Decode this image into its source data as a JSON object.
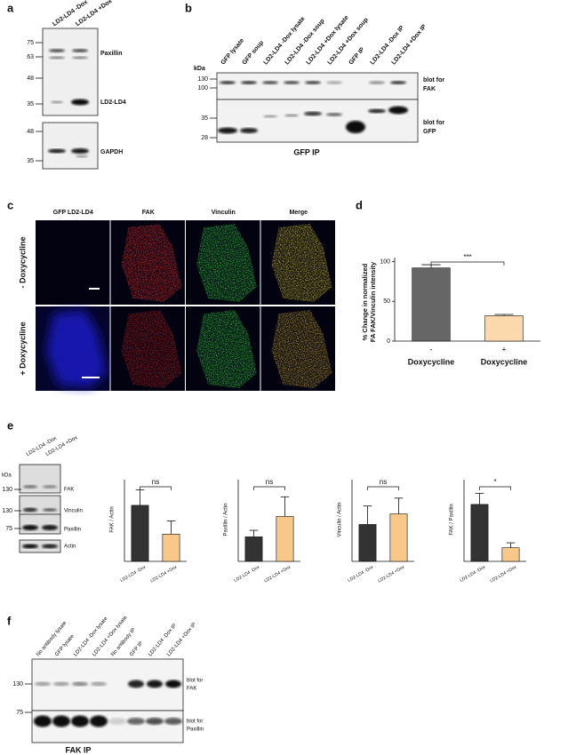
{
  "panels": {
    "a": {
      "label": "a",
      "lanes": [
        "LD2-LD4 -Dox",
        "LD2-LD4 +Dox"
      ],
      "markers_top": [
        75,
        63,
        48,
        35
      ],
      "markers_bottom": [
        48,
        35
      ],
      "bands": [
        "Paxillin",
        "LD2-LD4",
        "GAPDH"
      ]
    },
    "b": {
      "label": "b",
      "lanes": [
        "GFP lysate",
        "GFP soup",
        "LD2-LD4 -Dox lysate",
        "LD2-LD4 -Dox soup",
        "LD2-LD4 +Dox lysate",
        "LD2-LD4 +Dox soup",
        "GFP IP",
        "LD2-LD4 -Dox IP",
        "LD2-LD4 +Dox IP"
      ],
      "kda": "kDa",
      "markers_top": [
        130,
        100
      ],
      "markers_bottom": [
        35,
        28
      ],
      "blot_top": [
        "blot for",
        "FAK"
      ],
      "blot_bottom": [
        "blot for",
        "GFP"
      ],
      "caption": "GFP IP"
    },
    "c": {
      "label": "c",
      "columns": [
        "GFP LD2-LD4",
        "FAK",
        "Vinculin",
        "Merge"
      ],
      "rows": [
        "- Doxycycline",
        "+ Doxycycline"
      ]
    },
    "d": {
      "label": "d",
      "type": "bar",
      "ylabel": [
        "% Change in normalized",
        "FA FAK/Vinculin intensity"
      ],
      "categories": [
        "-",
        "+"
      ],
      "group_labels": [
        "Doxycycline",
        "Doxycycline"
      ],
      "values": [
        92,
        32
      ],
      "errors": [
        4,
        1.5
      ],
      "ylim": [
        0,
        105
      ],
      "yticks": [
        0,
        50,
        100
      ],
      "colors": [
        "#666666",
        "#fcd9ad"
      ],
      "significance": "***"
    },
    "e": {
      "label": "e",
      "kda": "kDa",
      "lanes": [
        "LD2-LD4 -Dox",
        "LD2-LD4 +Dox"
      ],
      "markers": [
        130,
        130,
        75
      ],
      "bands": [
        "FAK",
        "Vinculin",
        "Paxillin",
        "Actin"
      ],
      "charts": [
        {
          "type": "bar",
          "ylabel": "FAK / Actin",
          "categories": [
            "LD2-LD4 -Dox",
            "LD2-LD4 +Dox"
          ],
          "values": [
            0.72,
            0.35
          ],
          "errors": [
            0.2,
            0.17
          ],
          "ylim": [
            0,
            1.05
          ],
          "colors": [
            "#333333",
            "#f7c888"
          ],
          "significance": "ns"
        },
        {
          "type": "bar",
          "ylabel": "Paxillin / Actin",
          "categories": [
            "LD2-LD4 -Dox",
            "LD2-LD4 +Dox"
          ],
          "values": [
            3,
            5.5
          ],
          "errors": [
            0.8,
            2.4
          ],
          "ylim": [
            0,
            10
          ],
          "colors": [
            "#333333",
            "#f7c888"
          ],
          "significance": "ns"
        },
        {
          "type": "bar",
          "ylabel": "Vinculin / Actin",
          "categories": [
            "LD2-LD4 -Dox",
            "LD2-LD4 +Dox"
          ],
          "values": [
            0.28,
            0.36
          ],
          "errors": [
            0.14,
            0.12
          ],
          "ylim": [
            0,
            0.62
          ],
          "colors": [
            "#333333",
            "#f7c888"
          ],
          "significance": "ns"
        },
        {
          "type": "bar",
          "ylabel": "FAK / Paxillin",
          "categories": [
            "LD2-LD4 -Dox",
            "LD2-LD4 +Dox"
          ],
          "values": [
            0.23,
            0.055
          ],
          "errors": [
            0.045,
            0.02
          ],
          "ylim": [
            0,
            0.33
          ],
          "colors": [
            "#333333",
            "#f7c888"
          ],
          "significance": "*"
        }
      ]
    },
    "f": {
      "label": "f",
      "lanes": [
        "No antibody lysate",
        "GFP lysate",
        "LD2-LD4 -Dox lysate",
        "LD2-LD4 +Dox lysate",
        "No antibody IP",
        "GFP IP",
        "LD2-LD4 -Dox IP",
        "LD2-LD4 +Dox IP"
      ],
      "markers": [
        130,
        75
      ],
      "blot_top": [
        "blot for",
        "FAK"
      ],
      "blot_bottom": [
        "blot for",
        "Paxillin"
      ],
      "caption": "FAK IP"
    }
  }
}
